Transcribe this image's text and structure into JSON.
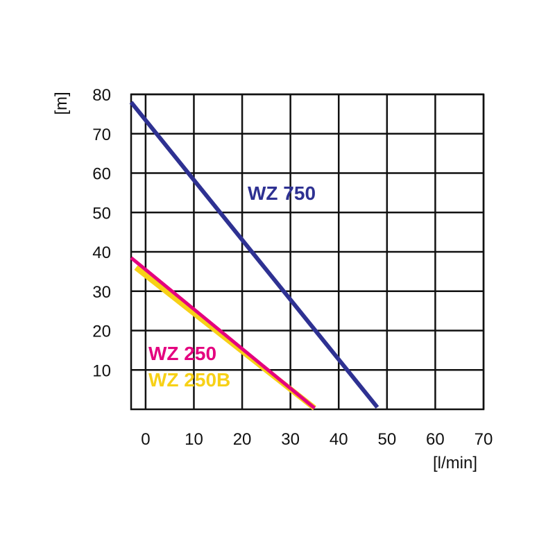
{
  "chart_data": {
    "type": "line",
    "title": "",
    "xlabel": "[l/min]",
    "ylabel": "[m]",
    "xlim": [
      -3,
      70
    ],
    "ylim": [
      0,
      80
    ],
    "x_ticks": [
      0,
      10,
      20,
      30,
      40,
      50,
      60,
      70
    ],
    "y_ticks": [
      10,
      20,
      30,
      40,
      50,
      60,
      70,
      80
    ],
    "grid": true,
    "series": [
      {
        "name": "WZ 750",
        "color": "#2e3192",
        "x": [
          -3,
          48
        ],
        "y": [
          78,
          0.5
        ]
      },
      {
        "name": "WZ 250B",
        "color": "#f7d117",
        "x": [
          -2,
          35
        ],
        "y": [
          36,
          0.3
        ]
      },
      {
        "name": "WZ 250",
        "color": "#e4007f",
        "x": [
          -3,
          35
        ],
        "y": [
          38.5,
          0.3
        ]
      }
    ]
  }
}
